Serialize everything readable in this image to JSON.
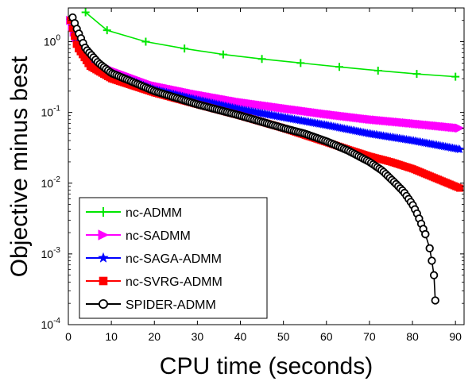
{
  "chart_data": {
    "type": "line",
    "title": "",
    "xlabel": "CPU time (seconds)",
    "ylabel": "Objective minus best",
    "xlim": [
      0,
      92
    ],
    "ylim": [
      0.0001,
      3
    ],
    "yscale": "log",
    "grid": false,
    "legend_position": "bottom-left",
    "x_ticks": [
      {
        "value": 0,
        "label": "0"
      },
      {
        "value": 10,
        "label": "10"
      },
      {
        "value": 20,
        "label": "20"
      },
      {
        "value": 30,
        "label": "30"
      },
      {
        "value": 40,
        "label": "40"
      },
      {
        "value": 50,
        "label": "50"
      },
      {
        "value": 60,
        "label": "60"
      },
      {
        "value": 70,
        "label": "70"
      },
      {
        "value": 80,
        "label": "80"
      },
      {
        "value": 90,
        "label": "90"
      }
    ],
    "y_ticks": [
      {
        "value": 1,
        "base": "10",
        "exp": "0"
      },
      {
        "value": 0.1,
        "base": "10",
        "exp": "-1"
      },
      {
        "value": 0.01,
        "base": "10",
        "exp": "-2"
      },
      {
        "value": 0.001,
        "base": "10",
        "exp": "-3"
      },
      {
        "value": 0.0001,
        "base": "10",
        "exp": "-4"
      }
    ],
    "series": [
      {
        "name": "nc-ADMM",
        "color": "#00e600",
        "marker": "plus",
        "x": [
          4,
          9,
          18,
          27,
          36,
          45,
          54,
          63,
          72,
          81,
          90
        ],
        "y": [
          2.6,
          1.45,
          1.0,
          0.8,
          0.66,
          0.57,
          0.5,
          0.44,
          0.39,
          0.35,
          0.32
        ]
      },
      {
        "name": "nc-SADMM",
        "color": "#ff00ff",
        "marker": "triangle-right",
        "x": [
          0.5,
          2,
          5,
          10,
          20,
          30,
          40,
          50,
          60,
          70,
          80,
          91
        ],
        "y": [
          2.0,
          1.0,
          0.6,
          0.4,
          0.24,
          0.18,
          0.14,
          0.115,
          0.095,
          0.08,
          0.07,
          0.06
        ]
      },
      {
        "name": "nc-SAGA-ADMM",
        "color": "#0000ff",
        "marker": "star",
        "x": [
          0.5,
          2,
          5,
          10,
          20,
          30,
          40,
          50,
          60,
          70,
          80,
          91
        ],
        "y": [
          2.0,
          1.0,
          0.55,
          0.36,
          0.21,
          0.15,
          0.11,
          0.085,
          0.066,
          0.05,
          0.04,
          0.03
        ]
      },
      {
        "name": "nc-SVRG-ADMM",
        "color": "#ff0000",
        "marker": "square",
        "x": [
          0.5,
          2,
          5,
          10,
          20,
          30,
          40,
          50,
          60,
          65,
          70,
          75,
          80,
          85,
          91
        ],
        "y": [
          2.0,
          0.85,
          0.45,
          0.3,
          0.19,
          0.13,
          0.09,
          0.06,
          0.038,
          0.03,
          0.024,
          0.02,
          0.016,
          0.012,
          0.0085
        ]
      },
      {
        "name": "SPIDER-ADMM",
        "color": "#000000",
        "marker": "circle",
        "x": [
          1,
          2,
          4,
          7,
          10,
          20,
          30,
          40,
          50,
          55,
          60,
          65,
          70,
          73,
          76,
          78,
          80,
          81,
          82,
          83,
          84,
          84.5,
          85,
          85.3
        ],
        "y": [
          2.2,
          1.5,
          0.8,
          0.5,
          0.36,
          0.2,
          0.13,
          0.09,
          0.06,
          0.05,
          0.039,
          0.029,
          0.02,
          0.015,
          0.01,
          0.0075,
          0.005,
          0.0038,
          0.0027,
          0.0019,
          0.0012,
          0.0008,
          0.0005,
          0.00022
        ]
      }
    ]
  }
}
